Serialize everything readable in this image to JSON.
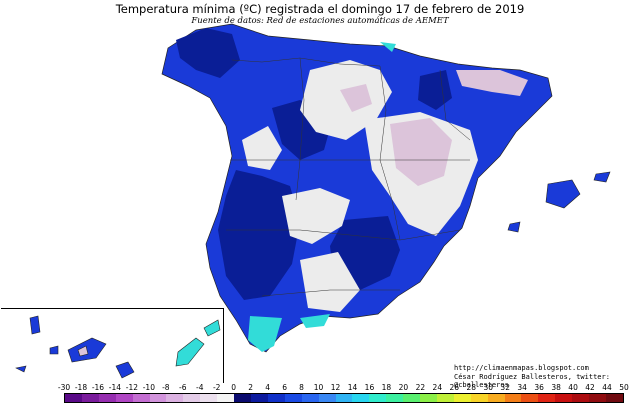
{
  "title": "Temperatura mínima (ºC) registrada el domingo 17 de febrero de 2019",
  "source": "Fuente de datos: Red de estaciones automáticas de AEMET",
  "credits": {
    "line1": "http://climaenmapas.blogspot.com",
    "line2": "César Rodríguez Ballesteros, twitter: @cballesteros"
  },
  "legend": {
    "labels": [
      "-30",
      "-18",
      "-16",
      "-14",
      "-12",
      "-10",
      "-8",
      "-6",
      "-4",
      "-2",
      "0",
      "2",
      "4",
      "6",
      "8",
      "10",
      "12",
      "14",
      "16",
      "18",
      "20",
      "22",
      "24",
      "26",
      "28",
      "30",
      "32",
      "34",
      "36",
      "38",
      "40",
      "42",
      "44",
      "50"
    ],
    "colors": [
      "#5a0a88",
      "#7a1c9c",
      "#962eb0",
      "#b046c4",
      "#c46ed2",
      "#d294dc",
      "#dcb2e2",
      "#e4cce8",
      "#ece0ee",
      "#f4f4f4",
      "#0a0a6e",
      "#0c1a9e",
      "#1030c8",
      "#1a4ae4",
      "#2a66f0",
      "#3a88f4",
      "#30b4f4",
      "#28d6f0",
      "#30eccc",
      "#3cf0a0",
      "#5af070",
      "#8cf048",
      "#c0f038",
      "#ecf030",
      "#f8d428",
      "#f8ac20",
      "#f47e18",
      "#ec5014",
      "#e02414",
      "#c81010",
      "#ac0c10",
      "#900c10",
      "#700a10"
    ]
  },
  "map": {
    "colors": {
      "coast": "#1a3ad8",
      "deep": "#0a1e96",
      "cold": "#dcc4da",
      "neutral": "#ececec",
      "cyan": "#32dcd8",
      "border": "#333333"
    }
  }
}
